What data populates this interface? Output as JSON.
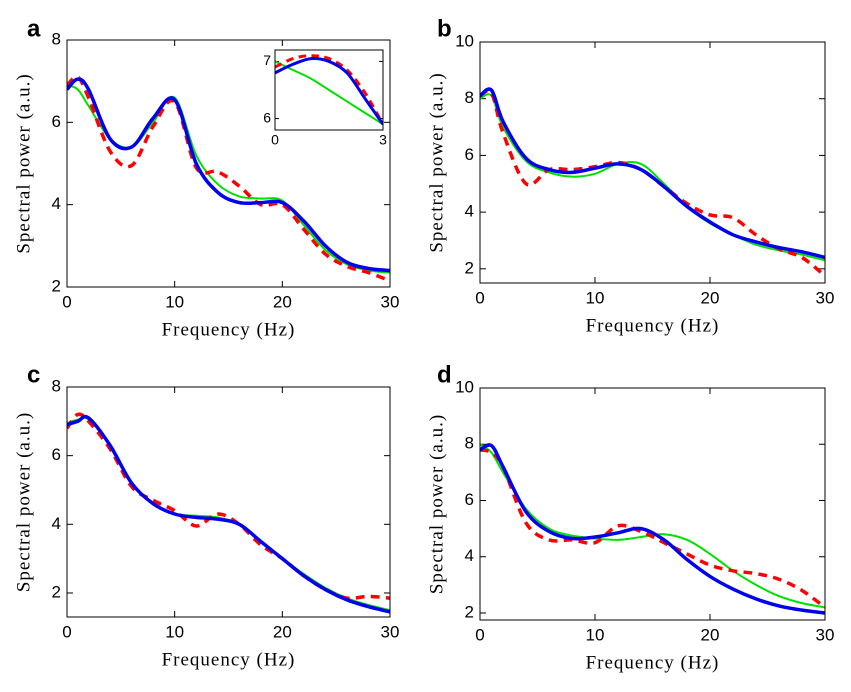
{
  "chart_data": [
    {
      "type": "line",
      "panel": "a",
      "xlabel": "Frequency (Hz)",
      "ylabel": "Spectral power (a.u.)",
      "x": [
        0,
        1,
        2,
        4,
        6,
        8,
        10,
        12,
        14,
        16,
        18,
        20,
        22,
        24,
        26,
        28,
        30
      ],
      "xlim": [
        0,
        30
      ],
      "ylim": [
        2,
        8
      ],
      "xticks": [
        0,
        10,
        20,
        30
      ],
      "yticks": [
        2,
        4,
        6,
        8
      ],
      "series": [
        {
          "color": "#00e000",
          "linewidth": 2,
          "dashed": false,
          "values": [
            6.9,
            6.8,
            6.4,
            5.6,
            5.4,
            6.0,
            6.6,
            5.2,
            4.5,
            4.2,
            4.15,
            4.1,
            3.5,
            2.9,
            2.55,
            2.4,
            2.35
          ]
        },
        {
          "color": "#ff0000",
          "linewidth": 3.5,
          "dashed": true,
          "values": [
            6.9,
            7.1,
            6.6,
            5.3,
            4.95,
            5.9,
            6.5,
            4.9,
            4.8,
            4.45,
            4.0,
            4.0,
            3.4,
            2.8,
            2.5,
            2.35,
            2.15
          ]
        },
        {
          "color": "#0000ee",
          "linewidth": 3.5,
          "dashed": false,
          "values": [
            6.8,
            7.05,
            6.8,
            5.6,
            5.4,
            6.1,
            6.55,
            5.0,
            4.3,
            4.05,
            4.05,
            4.05,
            3.6,
            3.0,
            2.6,
            2.45,
            2.4
          ]
        }
      ]
    },
    {
      "type": "line",
      "panel": "b",
      "xlabel": "Frequency (Hz)",
      "ylabel": "Spectral power (a.u.)",
      "x": [
        0,
        1,
        2,
        4,
        6,
        8,
        10,
        12,
        14,
        16,
        18,
        20,
        22,
        24,
        26,
        28,
        30
      ],
      "xlim": [
        0,
        30
      ],
      "ylim": [
        1.5,
        10
      ],
      "xticks": [
        0,
        10,
        20,
        30
      ],
      "yticks": [
        2,
        4,
        6,
        8,
        10
      ],
      "series": [
        {
          "color": "#00e000",
          "linewidth": 2,
          "dashed": false,
          "values": [
            8.0,
            8.1,
            7.0,
            5.8,
            5.4,
            5.25,
            5.35,
            5.7,
            5.7,
            5.0,
            4.2,
            3.6,
            3.2,
            2.85,
            2.65,
            2.5,
            2.3
          ]
        },
        {
          "color": "#ff0000",
          "linewidth": 3.5,
          "dashed": true,
          "values": [
            8.1,
            8.2,
            6.8,
            5.0,
            5.5,
            5.5,
            5.6,
            5.75,
            5.5,
            4.9,
            4.3,
            3.9,
            3.8,
            3.2,
            2.7,
            2.4,
            1.75
          ]
        },
        {
          "color": "#0000ee",
          "linewidth": 3.5,
          "dashed": false,
          "values": [
            8.1,
            8.3,
            7.2,
            5.9,
            5.5,
            5.4,
            5.55,
            5.7,
            5.5,
            4.9,
            4.2,
            3.65,
            3.2,
            2.95,
            2.75,
            2.6,
            2.4
          ]
        }
      ]
    },
    {
      "type": "line",
      "panel": "c",
      "xlabel": "Frequency (Hz)",
      "ylabel": "Spectral power (a.u.)",
      "x": [
        0,
        1,
        2,
        4,
        6,
        8,
        10,
        12,
        14,
        16,
        18,
        20,
        22,
        24,
        26,
        28,
        30
      ],
      "xlim": [
        0,
        30
      ],
      "ylim": [
        1.3,
        8
      ],
      "xticks": [
        0,
        10,
        20,
        30
      ],
      "yticks": [
        2,
        4,
        6,
        8
      ],
      "series": [
        {
          "color": "#00e000",
          "linewidth": 2,
          "dashed": false,
          "values": [
            6.95,
            7.05,
            7.05,
            6.3,
            5.2,
            4.6,
            4.3,
            4.25,
            4.2,
            4.0,
            3.5,
            3.0,
            2.55,
            2.15,
            1.85,
            1.65,
            1.5
          ]
        },
        {
          "color": "#ff0000",
          "linewidth": 3.5,
          "dashed": true,
          "values": [
            6.8,
            7.2,
            7.0,
            6.2,
            5.1,
            4.7,
            4.4,
            3.95,
            4.3,
            4.0,
            3.4,
            3.0,
            2.5,
            2.1,
            1.85,
            1.9,
            1.85
          ]
        },
        {
          "color": "#0000ee",
          "linewidth": 3.5,
          "dashed": false,
          "values": [
            6.9,
            7.0,
            7.1,
            6.3,
            5.2,
            4.6,
            4.3,
            4.2,
            4.15,
            4.0,
            3.5,
            3.0,
            2.5,
            2.1,
            1.8,
            1.6,
            1.45
          ]
        }
      ]
    },
    {
      "type": "line",
      "panel": "d",
      "xlabel": "Frequency (Hz)",
      "ylabel": "Spectral power (a.u.)",
      "x": [
        0,
        1,
        2,
        4,
        6,
        8,
        10,
        12,
        14,
        16,
        18,
        20,
        22,
        24,
        26,
        28,
        30
      ],
      "xlim": [
        0,
        30
      ],
      "ylim": [
        1.75,
        10
      ],
      "xticks": [
        0,
        10,
        20,
        30
      ],
      "yticks": [
        2,
        4,
        6,
        8,
        10
      ],
      "series": [
        {
          "color": "#00e000",
          "linewidth": 2,
          "dashed": false,
          "values": [
            8.0,
            7.7,
            7.0,
            5.7,
            5.0,
            4.75,
            4.65,
            4.6,
            4.7,
            4.8,
            4.6,
            4.1,
            3.5,
            3.0,
            2.6,
            2.35,
            2.2
          ]
        },
        {
          "color": "#ff0000",
          "linewidth": 3.5,
          "dashed": true,
          "values": [
            7.8,
            7.7,
            7.2,
            5.2,
            4.6,
            4.6,
            4.5,
            5.1,
            4.9,
            4.5,
            4.1,
            3.7,
            3.5,
            3.4,
            3.2,
            2.8,
            2.2
          ]
        },
        {
          "color": "#0000ee",
          "linewidth": 3.5,
          "dashed": false,
          "values": [
            7.8,
            7.95,
            7.2,
            5.6,
            4.9,
            4.65,
            4.7,
            4.85,
            5.0,
            4.6,
            3.9,
            3.3,
            2.85,
            2.5,
            2.25,
            2.1,
            2.0
          ]
        }
      ]
    },
    {
      "type": "line",
      "x": [
        0,
        0.5,
        1,
        1.5,
        2,
        2.5,
        3
      ],
      "xlim": [
        0,
        3
      ],
      "ylim": [
        5.8,
        7.2
      ],
      "xticks": [
        0,
        3
      ],
      "yticks": [
        6,
        7
      ],
      "series": [
        {
          "color": "#00e000",
          "linewidth": 2,
          "dashed": false,
          "values": [
            7.0,
            6.85,
            6.7,
            6.5,
            6.3,
            6.1,
            5.9
          ]
        },
        {
          "color": "#ff0000",
          "linewidth": 3,
          "dashed": true,
          "values": [
            6.9,
            7.05,
            7.1,
            7.05,
            6.85,
            6.45,
            5.9
          ]
        },
        {
          "color": "#0000ee",
          "linewidth": 3,
          "dashed": false,
          "values": [
            6.8,
            6.95,
            7.05,
            7.0,
            6.8,
            6.35,
            5.9
          ]
        }
      ]
    }
  ]
}
